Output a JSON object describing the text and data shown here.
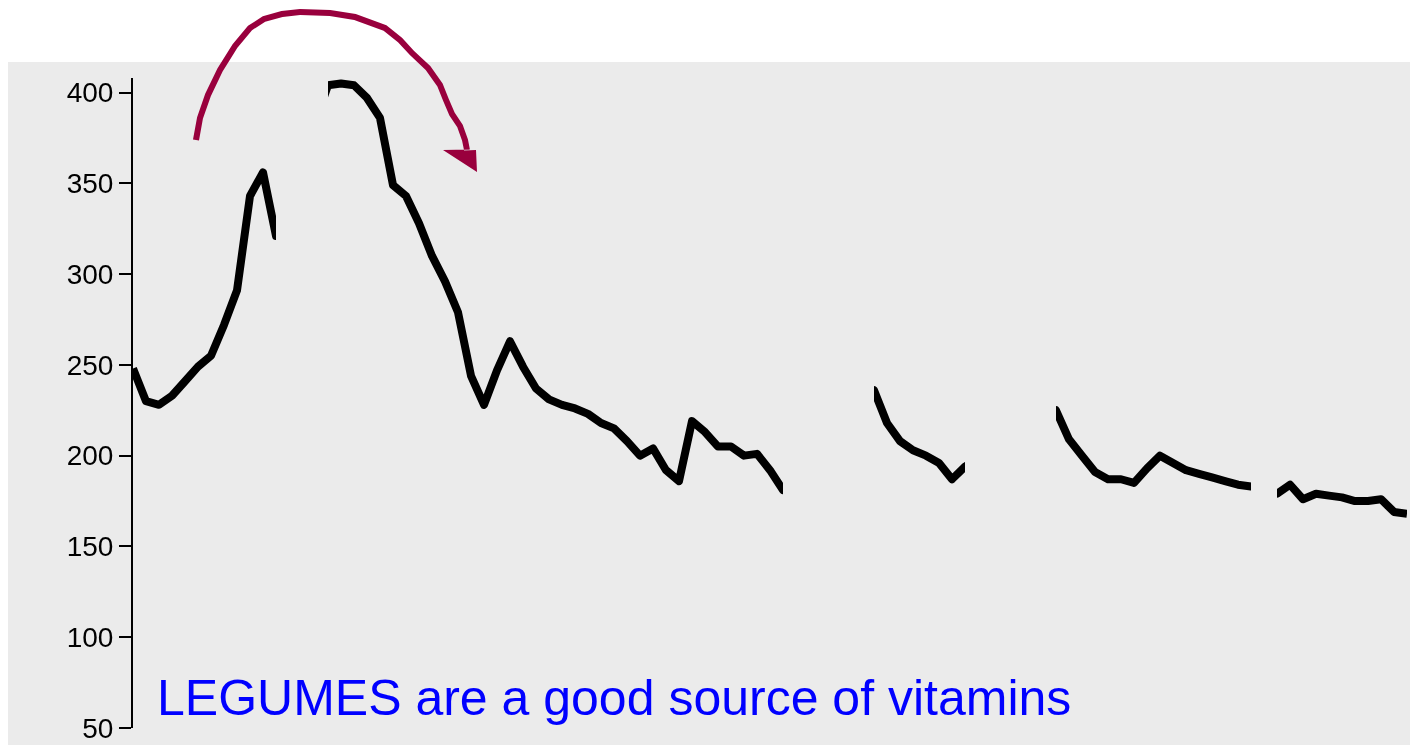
{
  "chart_data": {
    "type": "line",
    "categories": [
      null,
      null,
      null,
      null,
      null,
      null,
      null,
      null,
      null,
      null,
      null,
      null,
      null,
      null,
      null,
      null,
      null,
      null,
      null,
      null,
      null,
      null,
      null,
      null,
      null,
      null,
      null,
      null,
      null,
      null,
      null,
      null,
      null,
      null,
      null,
      null,
      null,
      null,
      null,
      null,
      null,
      null,
      null,
      null,
      null,
      null,
      null,
      null,
      null,
      null,
      null,
      null,
      null,
      null,
      null,
      null,
      null,
      null,
      null,
      null,
      null,
      null,
      null,
      null,
      null,
      null,
      null,
      null,
      null,
      null,
      null,
      null,
      null,
      null,
      null,
      null,
      null,
      null,
      null,
      null,
      null,
      null,
      null,
      null,
      null,
      null,
      null,
      null,
      null,
      null,
      null,
      null,
      null,
      null,
      null,
      null,
      null,
      null,
      null
    ],
    "series": [
      {
        "color": "#000000",
        "values": [
          248,
          230,
          228,
          233,
          241,
          249,
          255,
          272,
          291,
          343,
          356,
          321,
          null,
          null,
          null,
          404,
          405,
          404,
          397,
          386,
          349,
          343,
          328,
          310,
          296,
          279,
          244,
          228,
          247,
          263,
          249,
          237,
          231,
          228,
          226,
          223,
          218,
          215,
          208,
          200,
          204,
          192,
          186,
          219,
          213,
          205,
          205,
          200,
          201,
          192,
          181,
          null,
          null,
          null,
          null,
          null,
          null,
          236,
          218,
          208,
          203,
          200,
          196,
          187,
          194,
          null,
          null,
          null,
          null,
          null,
          null,
          225,
          209,
          200,
          191,
          187,
          187,
          185,
          193,
          200,
          196,
          192,
          190,
          188,
          186,
          184,
          183,
          null,
          179,
          184,
          176,
          179,
          178,
          177,
          175,
          175,
          176,
          169,
          168
        ]
      }
    ],
    "ylim": [
      50,
      408
    ],
    "yticks": [
      50,
      100,
      150,
      200,
      250,
      300,
      350,
      400
    ],
    "marker": "none",
    "line_style": "solid",
    "tick_labels": "y",
    "annotations": [
      "LEGUMES are a good source of vitamins"
    ]
  }
}
